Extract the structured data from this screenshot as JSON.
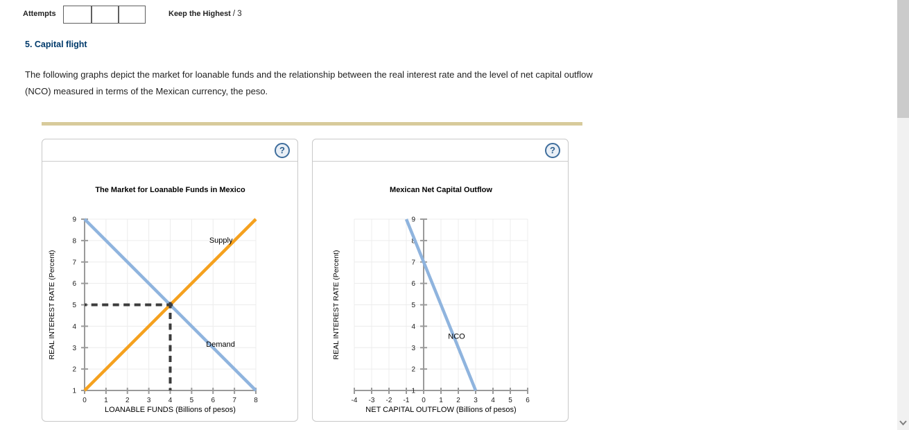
{
  "ui": {
    "attempts": {
      "label": "Attempts",
      "boxes": [
        "",
        "",
        ""
      ]
    },
    "keep_highest": {
      "label": "Keep the Highest",
      "suffix": "/ 3"
    },
    "help_icon": "?"
  },
  "section": {
    "title": "5. Capital flight",
    "description_line1": "The following graphs depict the market for loanable funds and the relationship between the real interest rate and the level of net capital outflow",
    "description_line2": "(NCO) measured in terms of the Mexican currency, the peso."
  },
  "colors": {
    "heading": "#003a6b",
    "divider": "#d8cb9b",
    "supply_line": "#f5a11e",
    "demand_line": "#8fb4de",
    "nco_line": "#8fb4de",
    "dashed_guide": "#3c3c3c",
    "axis": "#9a9a9a",
    "grid": "#ececec"
  },
  "chart_data": [
    {
      "type": "line",
      "title": "The Market for Loanable Funds in Mexico",
      "xlabel": "LOANABLE FUNDS (Billions of pesos)",
      "ylabel": "REAL INTEREST RATE (Percent)",
      "xlim": [
        0,
        8
      ],
      "ylim": [
        1,
        9
      ],
      "xticks": [
        0,
        1,
        2,
        3,
        4,
        5,
        6,
        7,
        8
      ],
      "yticks": [
        1,
        2,
        3,
        4,
        5,
        6,
        7,
        8,
        9
      ],
      "grid": true,
      "legend_position": "inline-labels",
      "series": [
        {
          "name": "Demand",
          "points": [
            [
              0,
              9
            ],
            [
              8,
              1
            ]
          ],
          "color": "#8fb4de",
          "label_pos": [
            6.35,
            3.17
          ]
        },
        {
          "name": "Supply",
          "points": [
            [
              0,
              1
            ],
            [
              8,
              9
            ]
          ],
          "color": "#f5a11e",
          "label_pos": [
            6.37,
            8.03
          ]
        }
      ],
      "equilibrium": {
        "x": 4,
        "y": 5
      },
      "dashed_lines": [
        {
          "name": "equilibrium-price-guide",
          "points": [
            [
              4.12,
              5
            ],
            [
              0,
              5
            ]
          ]
        },
        {
          "name": "equilibrium-quantity-guide",
          "points": [
            [
              4,
              5.13
            ],
            [
              4,
              1
            ]
          ]
        }
      ]
    },
    {
      "type": "line",
      "title": "Mexican Net Capital Outflow",
      "xlabel": "NET CAPITAL OUTFLOW (Billions of pesos)",
      "ylabel": "REAL INTEREST RATE (Percent)",
      "xlim": [
        -4,
        6
      ],
      "ylim": [
        1,
        9
      ],
      "xticks": [
        -4,
        -3,
        -2,
        -1,
        0,
        1,
        2,
        3,
        4,
        5,
        6
      ],
      "yticks": [
        1,
        2,
        3,
        4,
        5,
        6,
        7,
        8,
        9
      ],
      "grid": true,
      "y_axis_at_x": 0,
      "legend_position": "inline-labels",
      "series": [
        {
          "name": "NCO",
          "points": [
            [
              -1,
              9
            ],
            [
              3,
              1
            ]
          ],
          "color": "#8fb4de",
          "label_pos": [
            1.9,
            3.55
          ]
        }
      ]
    }
  ]
}
